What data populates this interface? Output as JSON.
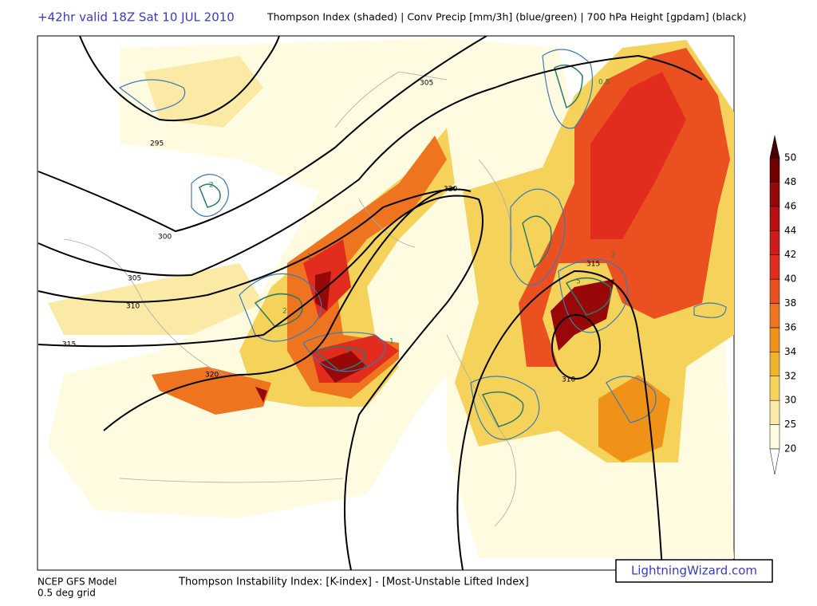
{
  "header": {
    "run": "+42hr valid 18Z Sat 10 JUL 2010",
    "fields": "Thompson Index (shaded) | Conv Precip [mm/3h] (blue/green) | 700 hPa Height [gpdam] (black)"
  },
  "map": {
    "height_labels": [
      305,
      295,
      300,
      305,
      310,
      315,
      320,
      320,
      315,
      310
    ],
    "precip_labels": [
      2,
      2,
      5,
      1,
      5,
      2,
      0.5,
      1,
      2
    ]
  },
  "colorbar": {
    "levels": [
      20,
      25,
      30,
      32,
      34,
      36,
      38,
      40,
      42,
      44,
      46,
      48,
      50
    ],
    "colors": [
      "#fffbe0",
      "#faeaa6",
      "#f5d35a",
      "#f0b42a",
      "#f09218",
      "#ee7420",
      "#ea5020",
      "#e22c1e",
      "#d01c18",
      "#b81010",
      "#980808",
      "#700000"
    ],
    "under_color": "#ffffff",
    "over_color": "#480000"
  },
  "footer": {
    "model": "NCEP GFS Model",
    "grid": "0.5 deg grid",
    "index": "Thompson Instability Index: [K-index] - [Most-Unstable Lifted Index]",
    "site": "LightningWizard.com"
  }
}
